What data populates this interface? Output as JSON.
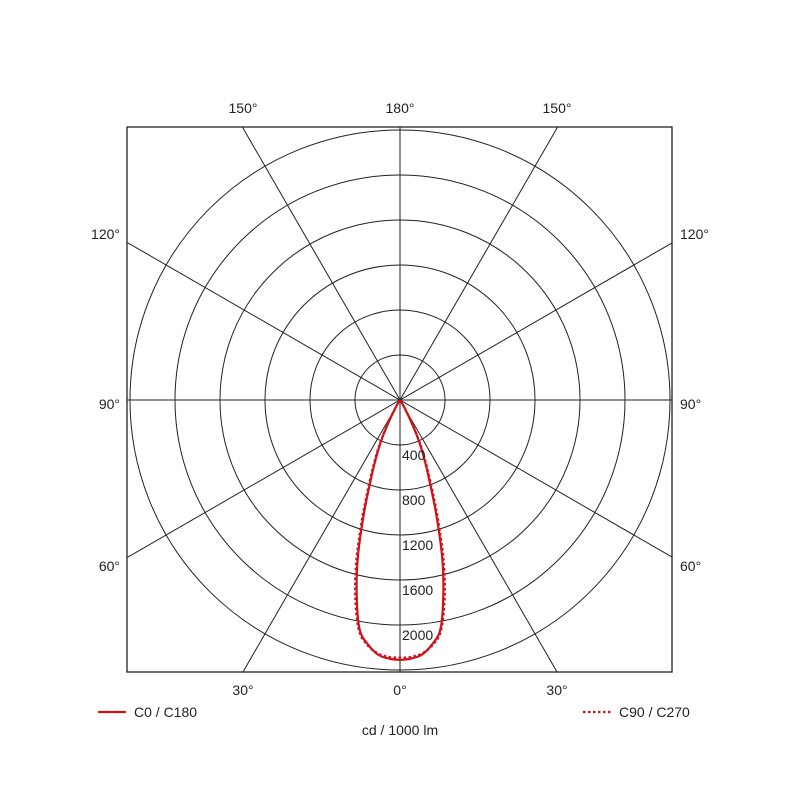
{
  "chart_data": {
    "type": "polar",
    "unit_label": "cd / 1000 lm",
    "radial_ticks": [
      400,
      800,
      1200,
      1600,
      2000,
      2400
    ],
    "radial_tick_labels": [
      "400",
      "800",
      "1200",
      "1600",
      "2000"
    ],
    "radial_max": 2400,
    "angle_labels": {
      "bottom": [
        "30°",
        "0°",
        "30°"
      ],
      "top": [
        "150°",
        "180°",
        "150°"
      ],
      "left": [
        "120°",
        "90°",
        "60°"
      ],
      "right": [
        "120°",
        "90°",
        "60°"
      ]
    },
    "grid": true,
    "legend_placement": "bottom",
    "series": [
      {
        "name": "C0 / C180",
        "style": "solid",
        "color": "#d0121b",
        "angles_deg": [
          0,
          2.5,
          5,
          7.5,
          10,
          12.5,
          15,
          17.5,
          20,
          22.5,
          25,
          27.5,
          30,
          32.5,
          35
        ],
        "values": [
          2310,
          2300,
          2270,
          2190,
          2070,
          1780,
          1450,
          1080,
          770,
          560,
          380,
          200,
          80,
          20,
          0
        ]
      },
      {
        "name": "C90 / C270",
        "style": "dotted",
        "color": "#d0121b",
        "angles_deg": [
          0,
          2.5,
          5,
          7.5,
          10,
          12.5,
          15,
          17.5,
          20,
          22.5,
          25,
          27.5,
          30,
          32.5,
          35
        ],
        "values": [
          2290,
          2285,
          2260,
          2200,
          2090,
          1830,
          1510,
          1140,
          820,
          600,
          410,
          220,
          90,
          25,
          0
        ]
      }
    ]
  }
}
